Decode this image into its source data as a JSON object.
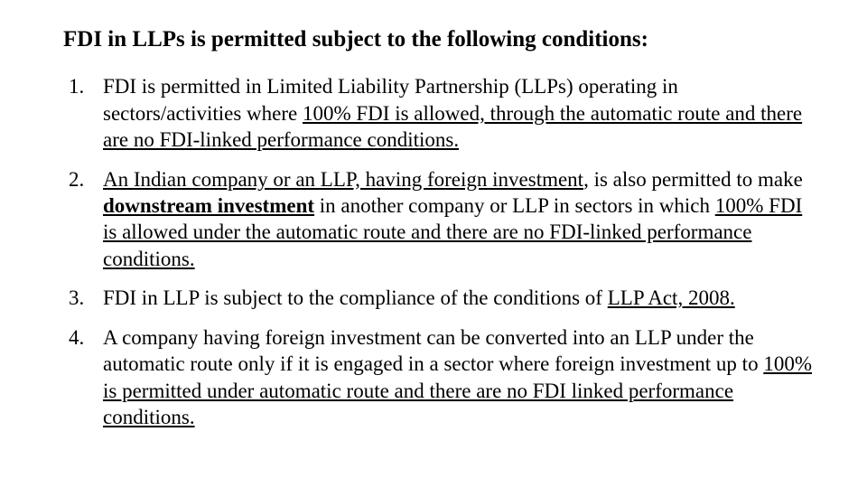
{
  "heading": "FDI in LLPs is permitted subject to the following conditions:",
  "items": [
    {
      "pre": "FDI is permitted in Limited Liability Partnership (LLPs) operating in sectors/activities where ",
      "u1": "100% FDI is allowed, through the automatic route and there are no FDI-linked performance conditions. "
    },
    {
      "u1": "An Indian company or an LLP, having foreign investment",
      "mid1": ", is also permitted to make ",
      "bold_u": "downstream investment",
      "mid2": " in another company or LLP in sectors in which ",
      "u2": "100% FDI is allowed under the automatic route and there are no FDI-linked performance conditions."
    },
    {
      "pre": "FDI in LLP is subject to the compliance of the conditions of ",
      "u1": "LLP Act, 2008."
    },
    {
      "pre": "A company having foreign investment can be converted into an LLP under the automatic route only if it is engaged in a sector where foreign investment up to ",
      "u1": "100% is permitted under automatic route and there are no FDI linked performance conditions."
    }
  ]
}
